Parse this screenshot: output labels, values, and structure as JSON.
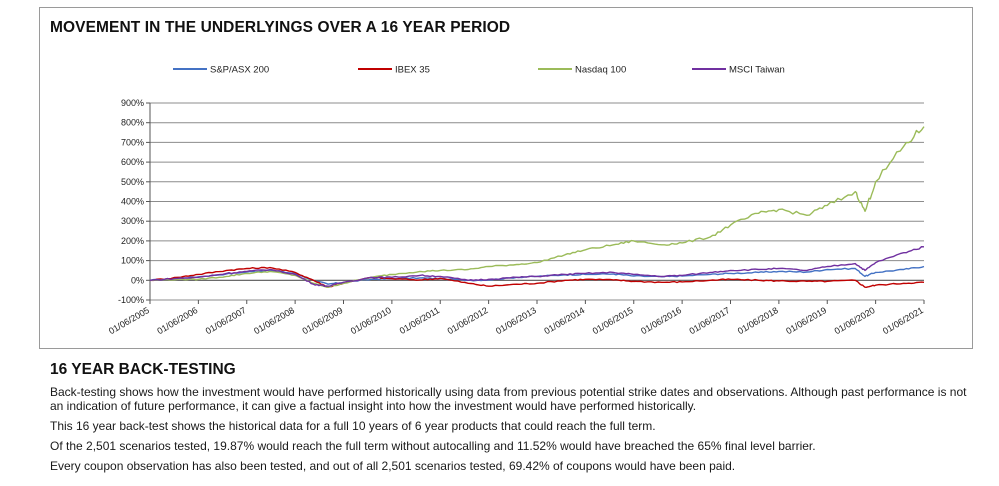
{
  "chart_data": {
    "type": "line",
    "title": "MOVEMENT IN THE UNDERLYINGS OVER A 16 YEAR PERIOD",
    "xlabel": "",
    "ylabel": "",
    "ylim": [
      -100,
      900
    ],
    "y_ticks": [
      "900%",
      "800%",
      "700%",
      "600%",
      "500%",
      "400%",
      "300%",
      "200%",
      "100%",
      "0%",
      "-100%"
    ],
    "y_tick_values": [
      900,
      800,
      700,
      600,
      500,
      400,
      300,
      200,
      100,
      0,
      -100
    ],
    "x_ticks": [
      "01/06/2005",
      "01/06/2006",
      "01/06/2007",
      "01/06/2008",
      "01/06/2009",
      "01/06/2010",
      "01/06/2011",
      "01/06/2012",
      "01/06/2013",
      "01/06/2014",
      "01/06/2015",
      "01/06/2016",
      "01/06/2017",
      "01/06/2018",
      "01/06/2019",
      "01/06/2020",
      "01/06/2021"
    ],
    "x_tick_values": [
      2005.42,
      2006.42,
      2007.42,
      2008.42,
      2009.42,
      2010.42,
      2011.42,
      2012.42,
      2013.42,
      2014.42,
      2015.42,
      2016.42,
      2017.42,
      2018.42,
      2019.42,
      2020.42,
      2021.42
    ],
    "xlim": [
      2005.42,
      2021.42
    ],
    "grid": true,
    "legend_position": "top",
    "series": [
      {
        "name": "S&P/ASX 200",
        "color": "#4472C4",
        "x": [
          2005.42,
          2006.0,
          2006.42,
          2007.0,
          2007.42,
          2007.9,
          2008.42,
          2008.8,
          2009.1,
          2009.42,
          2010.0,
          2010.42,
          2011.0,
          2011.42,
          2012.0,
          2012.42,
          2013.0,
          2013.42,
          2014.0,
          2014.42,
          2015.0,
          2015.42,
          2016.0,
          2016.42,
          2017.0,
          2017.42,
          2018.0,
          2018.42,
          2019.0,
          2019.42,
          2020.0,
          2020.2,
          2020.42,
          2021.0,
          2021.42
        ],
        "values": [
          0,
          10,
          18,
          32,
          42,
          50,
          35,
          0,
          -20,
          -10,
          5,
          8,
          12,
          8,
          0,
          2,
          15,
          20,
          28,
          30,
          32,
          22,
          18,
          22,
          30,
          35,
          40,
          45,
          42,
          55,
          60,
          20,
          40,
          55,
          70
        ]
      },
      {
        "name": "IBEX 35",
        "color": "#C00000",
        "x": [
          2005.42,
          2006.0,
          2006.42,
          2007.0,
          2007.42,
          2007.9,
          2008.42,
          2008.8,
          2009.1,
          2009.42,
          2010.0,
          2010.42,
          2011.0,
          2011.42,
          2012.0,
          2012.42,
          2013.0,
          2013.42,
          2014.0,
          2014.42,
          2015.0,
          2015.42,
          2016.0,
          2016.42,
          2017.0,
          2017.42,
          2018.0,
          2018.42,
          2019.0,
          2019.42,
          2020.0,
          2020.2,
          2020.42,
          2021.0,
          2021.42
        ],
        "values": [
          0,
          15,
          30,
          50,
          60,
          65,
          40,
          0,
          -35,
          -15,
          15,
          8,
          2,
          10,
          -15,
          -30,
          -20,
          -15,
          0,
          5,
          2,
          -5,
          -10,
          -8,
          0,
          5,
          0,
          -3,
          -5,
          -5,
          0,
          -35,
          -25,
          -15,
          -10
        ]
      },
      {
        "name": "Nasdaq 100",
        "color": "#9BBB59",
        "x": [
          2005.42,
          2006.0,
          2006.42,
          2007.0,
          2007.42,
          2007.9,
          2008.42,
          2008.8,
          2009.1,
          2009.42,
          2010.0,
          2010.42,
          2011.0,
          2011.42,
          2012.0,
          2012.42,
          2013.0,
          2013.42,
          2014.0,
          2014.42,
          2015.0,
          2015.42,
          2016.0,
          2016.42,
          2017.0,
          2017.42,
          2018.0,
          2018.42,
          2019.0,
          2019.42,
          2020.0,
          2020.2,
          2020.42,
          2021.0,
          2021.42
        ],
        "values": [
          0,
          5,
          5,
          20,
          35,
          45,
          25,
          -15,
          -35,
          -15,
          15,
          30,
          45,
          50,
          55,
          70,
          80,
          90,
          130,
          155,
          180,
          200,
          180,
          190,
          220,
          280,
          340,
          360,
          330,
          380,
          450,
          350,
          500,
          680,
          780
        ]
      },
      {
        "name": "MSCI Taiwan",
        "color": "#7030A0",
        "x": [
          2005.42,
          2006.0,
          2006.42,
          2007.0,
          2007.42,
          2007.9,
          2008.42,
          2008.8,
          2009.1,
          2009.42,
          2010.0,
          2010.42,
          2011.0,
          2011.42,
          2012.0,
          2012.42,
          2013.0,
          2013.42,
          2014.0,
          2014.42,
          2015.0,
          2015.42,
          2016.0,
          2016.42,
          2017.0,
          2017.42,
          2018.0,
          2018.42,
          2019.0,
          2019.42,
          2020.0,
          2020.2,
          2020.42,
          2021.0,
          2021.42
        ],
        "values": [
          0,
          10,
          15,
          35,
          45,
          55,
          30,
          -20,
          -30,
          -10,
          15,
          15,
          25,
          20,
          0,
          5,
          15,
          20,
          30,
          35,
          40,
          30,
          20,
          25,
          40,
          50,
          55,
          60,
          50,
          70,
          85,
          50,
          90,
          140,
          170
        ]
      }
    ]
  },
  "section": {
    "title": "16 YEAR BACK-TESTING",
    "paragraphs": [
      "Back-testing shows how the investment would have performed historically using data from previous potential strike dates and observations. Although past performance is not an indication of future performance, it can give a factual insight into how the investment would have performed historically.",
      "This 16 year back-test shows the historical data for a full 10 years of 6 year products that could reach the full term.",
      "Of the 2,501 scenarios tested, 19.87% would reach the full term without autocalling and 11.52% would have breached the 65% final level barrier.",
      "Every coupon observation has also been tested, and out of all 2,501 scenarios tested, 69.42% of coupons would have been paid."
    ]
  }
}
